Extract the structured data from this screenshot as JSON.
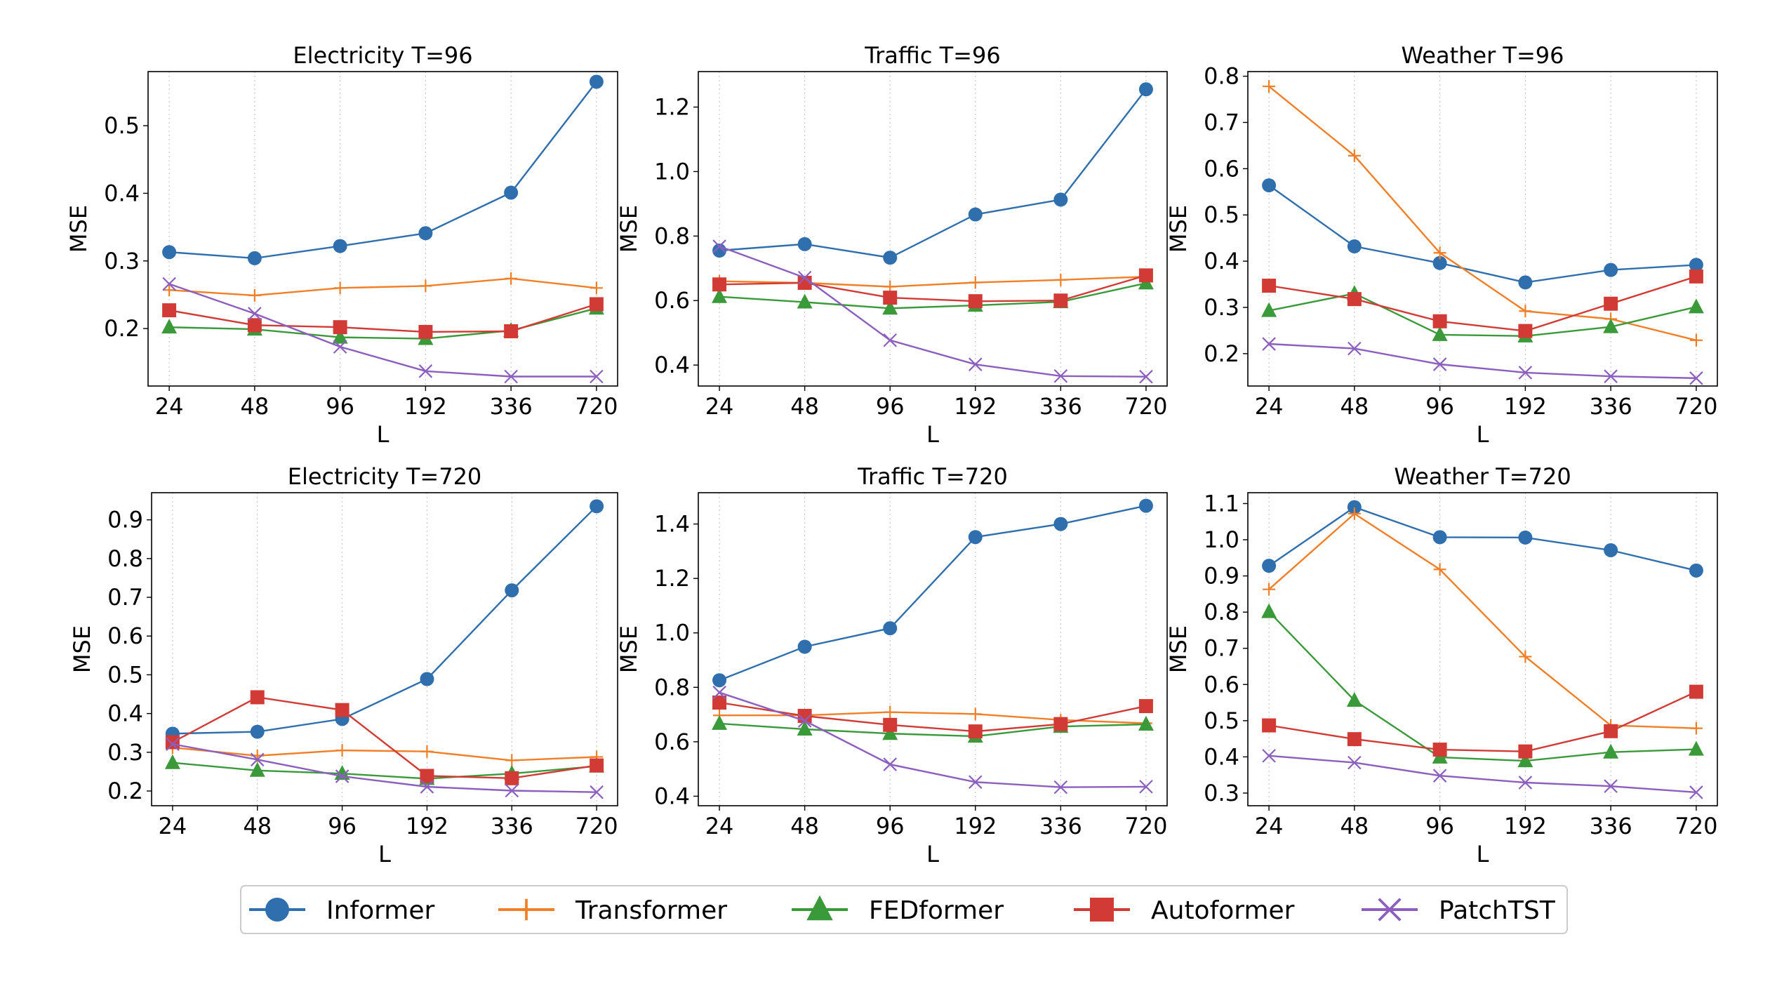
{
  "colors": {
    "Informer": "#2f6fad",
    "Transformer": "#f27f27",
    "FEDformer": "#3a9a3a",
    "Autoformer": "#d23b35",
    "PatchTST": "#8c5fbf"
  },
  "legend": [
    {
      "name": "Informer",
      "marker": "circle"
    },
    {
      "name": "Transformer",
      "marker": "plus"
    },
    {
      "name": "FEDformer",
      "marker": "triangle"
    },
    {
      "name": "Autoformer",
      "marker": "square"
    },
    {
      "name": "PatchTST",
      "marker": "x"
    }
  ],
  "chart_data": [
    {
      "type": "line",
      "title": "Electricity T=96",
      "xlabel": "L",
      "ylabel": "MSE",
      "categories": [
        "24",
        "48",
        "96",
        "192",
        "336",
        "720"
      ],
      "ylim": [
        0.115,
        0.58
      ],
      "yticks": [
        "0.2",
        "0.3",
        "0.4",
        "0.5"
      ],
      "grid": "vertical dotted",
      "series": [
        {
          "name": "Informer",
          "values": [
            0.313,
            0.304,
            0.322,
            0.341,
            0.401,
            0.565
          ]
        },
        {
          "name": "Transformer",
          "values": [
            0.257,
            0.249,
            0.26,
            0.263,
            0.274,
            0.26
          ]
        },
        {
          "name": "FEDformer",
          "values": [
            0.202,
            0.199,
            0.187,
            0.185,
            0.197,
            0.23
          ]
        },
        {
          "name": "Autoformer",
          "values": [
            0.227,
            0.205,
            0.202,
            0.195,
            0.196,
            0.236
          ]
        },
        {
          "name": "PatchTST",
          "values": [
            0.266,
            0.222,
            0.173,
            0.137,
            0.129,
            0.129
          ]
        }
      ]
    },
    {
      "type": "line",
      "title": "Traffic T=96",
      "xlabel": "L",
      "ylabel": "MSE",
      "categories": [
        "24",
        "48",
        "96",
        "192",
        "336",
        "720"
      ],
      "ylim": [
        0.335,
        1.31
      ],
      "yticks": [
        "0.4",
        "0.6",
        "0.8",
        "1.0",
        "1.2"
      ],
      "grid": "vertical dotted",
      "series": [
        {
          "name": "Informer",
          "values": [
            0.755,
            0.775,
            0.733,
            0.867,
            0.913,
            1.255
          ]
        },
        {
          "name": "Transformer",
          "values": [
            0.66,
            0.655,
            0.643,
            0.656,
            0.664,
            0.674
          ]
        },
        {
          "name": "FEDformer",
          "values": [
            0.612,
            0.595,
            0.576,
            0.585,
            0.596,
            0.654
          ]
        },
        {
          "name": "Autoformer",
          "values": [
            0.65,
            0.655,
            0.609,
            0.598,
            0.6,
            0.678
          ]
        },
        {
          "name": "PatchTST",
          "values": [
            0.768,
            0.671,
            0.477,
            0.402,
            0.366,
            0.364
          ]
        }
      ]
    },
    {
      "type": "line",
      "title": "Weather T=96",
      "xlabel": "L",
      "ylabel": "MSE",
      "categories": [
        "24",
        "48",
        "96",
        "192",
        "336",
        "720"
      ],
      "ylim": [
        0.13,
        0.81
      ],
      "yticks": [
        "0.2",
        "0.3",
        "0.4",
        "0.5",
        "0.6",
        "0.7",
        "0.8"
      ],
      "grid": "vertical dotted",
      "series": [
        {
          "name": "Informer",
          "values": [
            0.564,
            0.432,
            0.396,
            0.354,
            0.381,
            0.392
          ]
        },
        {
          "name": "Transformer",
          "values": [
            0.778,
            0.628,
            0.418,
            0.292,
            0.275,
            0.229
          ]
        },
        {
          "name": "FEDformer",
          "values": [
            0.293,
            0.33,
            0.241,
            0.238,
            0.258,
            0.301
          ]
        },
        {
          "name": "Autoformer",
          "values": [
            0.347,
            0.318,
            0.27,
            0.249,
            0.308,
            0.367
          ]
        },
        {
          "name": "PatchTST",
          "values": [
            0.221,
            0.211,
            0.177,
            0.159,
            0.151,
            0.147
          ]
        }
      ]
    },
    {
      "type": "line",
      "title": "Electricity T=720",
      "xlabel": "L",
      "ylabel": "MSE",
      "categories": [
        "24",
        "48",
        "96",
        "192",
        "336",
        "720"
      ],
      "ylim": [
        0.162,
        0.97
      ],
      "yticks": [
        "0.2",
        "0.3",
        "0.4",
        "0.5",
        "0.6",
        "0.7",
        "0.8",
        "0.9"
      ],
      "grid": "vertical dotted",
      "series": [
        {
          "name": "Informer",
          "values": [
            0.348,
            0.353,
            0.386,
            0.489,
            0.718,
            0.935
          ]
        },
        {
          "name": "Transformer",
          "values": [
            0.312,
            0.291,
            0.305,
            0.302,
            0.279,
            0.288
          ]
        },
        {
          "name": "FEDformer",
          "values": [
            0.273,
            0.253,
            0.245,
            0.232,
            0.245,
            0.264
          ]
        },
        {
          "name": "Autoformer",
          "values": [
            0.326,
            0.442,
            0.409,
            0.239,
            0.233,
            0.266
          ]
        },
        {
          "name": "PatchTST",
          "values": [
            0.321,
            0.281,
            0.238,
            0.211,
            0.201,
            0.197
          ]
        }
      ]
    },
    {
      "type": "line",
      "title": "Traffic T=720",
      "xlabel": "L",
      "ylabel": "MSE",
      "categories": [
        "24",
        "48",
        "96",
        "192",
        "336",
        "720"
      ],
      "ylim": [
        0.365,
        1.515
      ],
      "yticks": [
        "0.4",
        "0.6",
        "0.8",
        "1.0",
        "1.2",
        "1.4"
      ],
      "grid": "vertical dotted",
      "series": [
        {
          "name": "Informer",
          "values": [
            0.826,
            0.949,
            1.017,
            1.352,
            1.4,
            1.467
          ]
        },
        {
          "name": "Transformer",
          "values": [
            0.697,
            0.697,
            0.709,
            0.702,
            0.68,
            0.668
          ]
        },
        {
          "name": "FEDformer",
          "values": [
            0.667,
            0.646,
            0.63,
            0.62,
            0.656,
            0.664
          ]
        },
        {
          "name": "Autoformer",
          "values": [
            0.744,
            0.695,
            0.662,
            0.638,
            0.665,
            0.731
          ]
        },
        {
          "name": "PatchTST",
          "values": [
            0.781,
            0.677,
            0.517,
            0.452,
            0.433,
            0.435
          ]
        }
      ]
    },
    {
      "type": "line",
      "title": "Weather T=720",
      "xlabel": "L",
      "ylabel": "MSE",
      "categories": [
        "24",
        "48",
        "96",
        "192",
        "336",
        "720"
      ],
      "ylim": [
        0.265,
        1.13
      ],
      "yticks": [
        "0.3",
        "0.4",
        "0.5",
        "0.6",
        "0.7",
        "0.8",
        "0.9",
        "1.0",
        "1.1"
      ],
      "grid": "vertical dotted",
      "series": [
        {
          "name": "Informer",
          "values": [
            0.928,
            1.09,
            1.007,
            1.006,
            0.971,
            0.915
          ]
        },
        {
          "name": "Transformer",
          "values": [
            0.863,
            1.072,
            0.918,
            0.677,
            0.487,
            0.479
          ]
        },
        {
          "name": "FEDformer",
          "values": [
            0.801,
            0.556,
            0.399,
            0.389,
            0.413,
            0.421
          ]
        },
        {
          "name": "Autoformer",
          "values": [
            0.487,
            0.449,
            0.42,
            0.415,
            0.471,
            0.58
          ]
        },
        {
          "name": "PatchTST",
          "values": [
            0.403,
            0.384,
            0.348,
            0.329,
            0.319,
            0.302
          ]
        }
      ]
    }
  ]
}
